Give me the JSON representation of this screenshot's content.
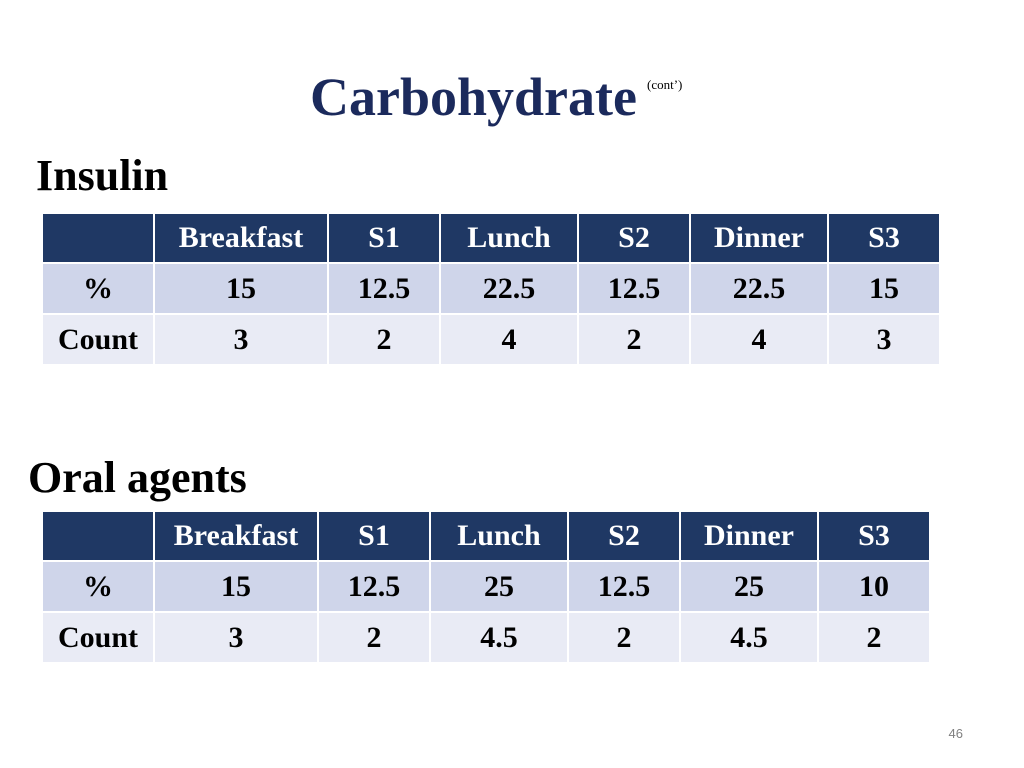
{
  "slide": {
    "title": "Carbohydrate",
    "title_suffix": "(cont’)",
    "page_number": "46"
  },
  "insulin": {
    "heading": "Insulin",
    "headers": [
      "",
      "Breakfast",
      "S1",
      "Lunch",
      "S2",
      "Dinner",
      "S3"
    ],
    "rows": [
      [
        "%",
        "15",
        "12.5",
        "22.5",
        "12.5",
        "22.5",
        "15"
      ],
      [
        "Count",
        "3",
        "2",
        "4",
        "2",
        "4",
        "3"
      ]
    ]
  },
  "oral_agents": {
    "heading": "Oral agents",
    "headers": [
      "",
      "Breakfast",
      "S1",
      "Lunch",
      "S2",
      "Dinner",
      "S3"
    ],
    "rows": [
      [
        "%",
        "15",
        "12.5",
        "25",
        "12.5",
        "25",
        "10"
      ],
      [
        "Count",
        "3",
        "2",
        "4.5",
        "2",
        "4.5",
        "2"
      ]
    ]
  },
  "colors": {
    "title": "#1b2a5c",
    "header_fill": "#1f3864",
    "row_fill_1": "#cfd5ea",
    "row_fill_2": "#e9ebf5"
  }
}
